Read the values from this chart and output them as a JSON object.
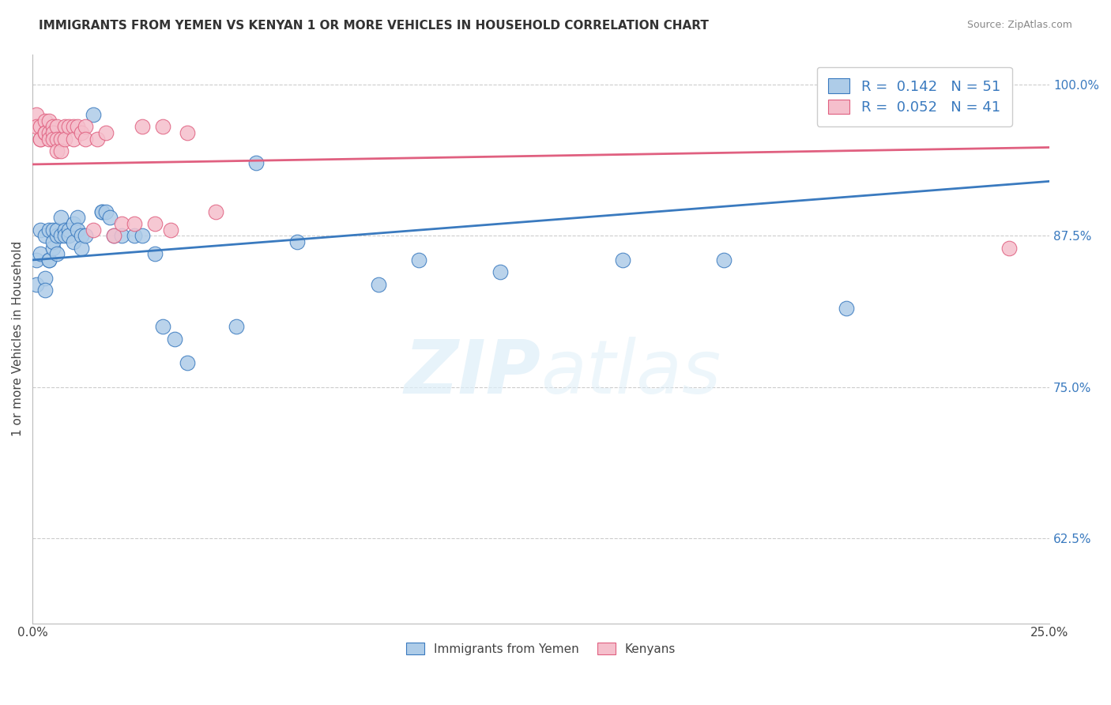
{
  "title": "IMMIGRANTS FROM YEMEN VS KENYAN 1 OR MORE VEHICLES IN HOUSEHOLD CORRELATION CHART",
  "source": "Source: ZipAtlas.com",
  "ylabel": "1 or more Vehicles in Household",
  "xlim": [
    0.0,
    0.25
  ],
  "ylim": [
    0.555,
    1.025
  ],
  "yticks_right": [
    0.625,
    0.75,
    0.875,
    1.0
  ],
  "ytick_right_labels": [
    "62.5%",
    "75.0%",
    "87.5%",
    "100.0%"
  ],
  "legend_R1": "0.142",
  "legend_N1": "51",
  "legend_R2": "0.052",
  "legend_N2": "41",
  "legend_label1": "Immigrants from Yemen",
  "legend_label2": "Kenyans",
  "blue_color": "#aecce8",
  "pink_color": "#f5bfcc",
  "line_blue": "#3a7abf",
  "line_pink": "#e06080",
  "watermark_color": "#ddeef8",
  "blue_scatter_x": [
    0.001,
    0.001,
    0.002,
    0.002,
    0.003,
    0.003,
    0.003,
    0.004,
    0.004,
    0.004,
    0.005,
    0.005,
    0.005,
    0.006,
    0.006,
    0.006,
    0.007,
    0.007,
    0.008,
    0.008,
    0.009,
    0.009,
    0.01,
    0.01,
    0.011,
    0.011,
    0.012,
    0.012,
    0.013,
    0.015,
    0.017,
    0.017,
    0.018,
    0.019,
    0.02,
    0.022,
    0.025,
    0.027,
    0.03,
    0.032,
    0.035,
    0.038,
    0.05,
    0.055,
    0.065,
    0.085,
    0.095,
    0.115,
    0.145,
    0.17,
    0.2
  ],
  "blue_scatter_y": [
    0.835,
    0.855,
    0.88,
    0.86,
    0.875,
    0.84,
    0.83,
    0.855,
    0.88,
    0.855,
    0.88,
    0.865,
    0.87,
    0.86,
    0.875,
    0.88,
    0.875,
    0.89,
    0.88,
    0.875,
    0.88,
    0.875,
    0.885,
    0.87,
    0.89,
    0.88,
    0.875,
    0.865,
    0.875,
    0.975,
    0.895,
    0.895,
    0.895,
    0.89,
    0.875,
    0.875,
    0.875,
    0.875,
    0.86,
    0.8,
    0.79,
    0.77,
    0.8,
    0.935,
    0.87,
    0.835,
    0.855,
    0.845,
    0.855,
    0.855,
    0.815
  ],
  "pink_scatter_x": [
    0.001,
    0.001,
    0.002,
    0.002,
    0.002,
    0.003,
    0.003,
    0.003,
    0.004,
    0.004,
    0.004,
    0.005,
    0.005,
    0.005,
    0.006,
    0.006,
    0.006,
    0.007,
    0.007,
    0.008,
    0.008,
    0.009,
    0.01,
    0.01,
    0.011,
    0.012,
    0.013,
    0.013,
    0.015,
    0.016,
    0.018,
    0.02,
    0.022,
    0.025,
    0.027,
    0.03,
    0.032,
    0.034,
    0.038,
    0.045,
    0.24
  ],
  "pink_scatter_y": [
    0.975,
    0.965,
    0.955,
    0.965,
    0.955,
    0.97,
    0.96,
    0.96,
    0.97,
    0.96,
    0.955,
    0.965,
    0.96,
    0.955,
    0.965,
    0.955,
    0.945,
    0.955,
    0.945,
    0.965,
    0.955,
    0.965,
    0.965,
    0.955,
    0.965,
    0.96,
    0.965,
    0.955,
    0.88,
    0.955,
    0.96,
    0.875,
    0.885,
    0.885,
    0.965,
    0.885,
    0.965,
    0.88,
    0.96,
    0.895,
    0.865
  ]
}
